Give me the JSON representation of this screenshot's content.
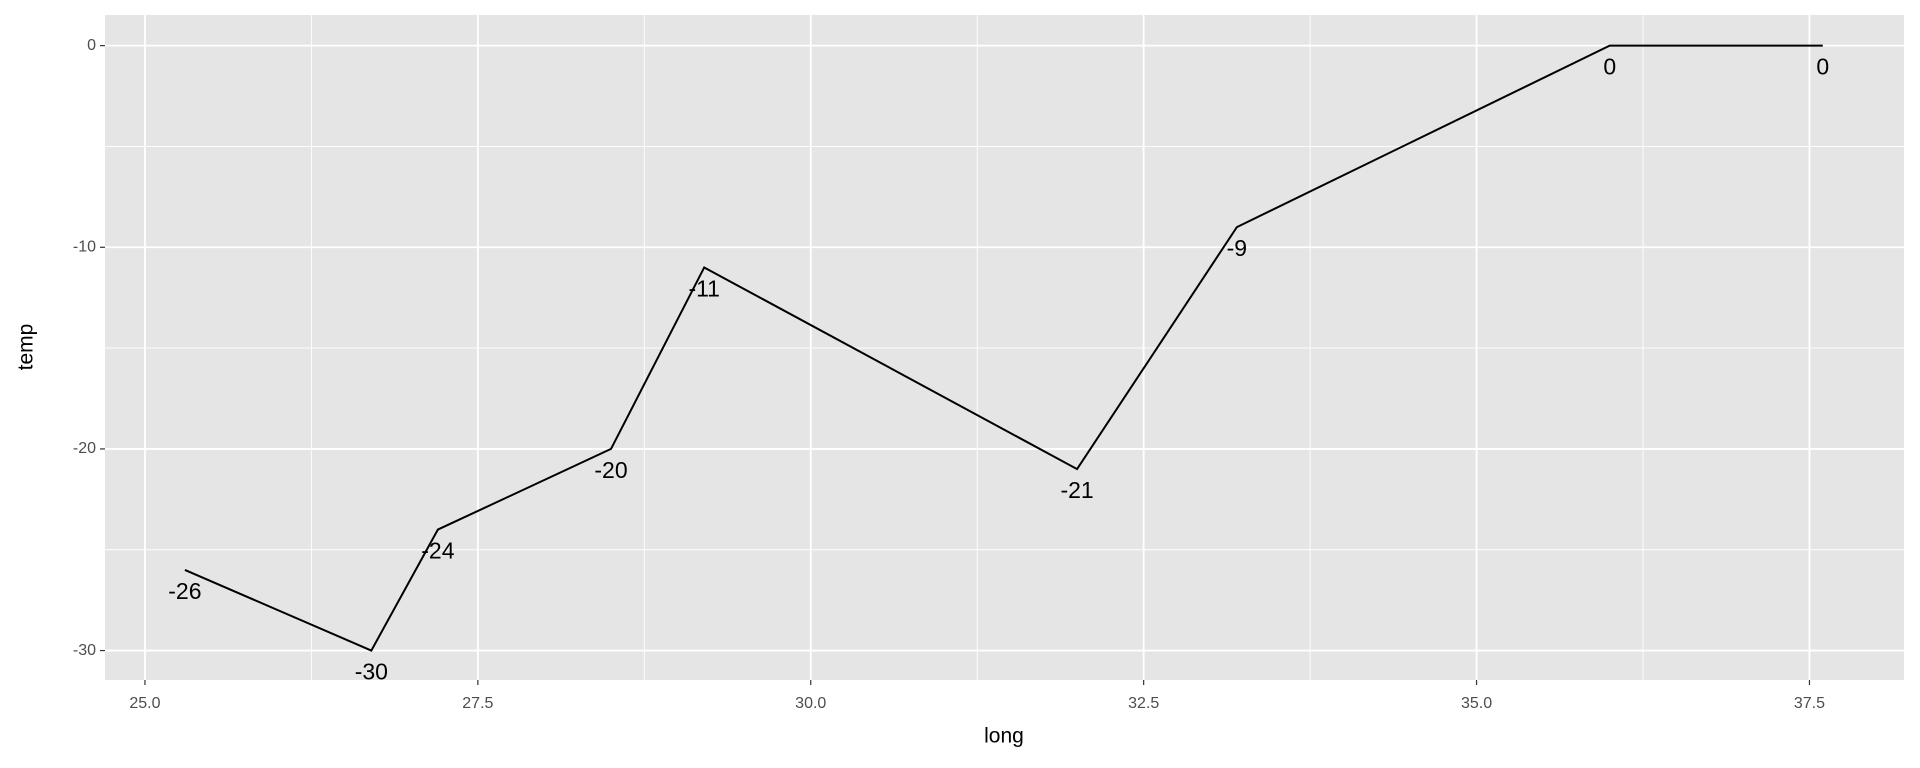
{
  "chart_data": {
    "type": "line",
    "x": [
      25.3,
      26.7,
      27.2,
      28.5,
      29.2,
      32.0,
      33.2,
      36.0,
      37.6
    ],
    "values": [
      -26,
      -30,
      -24,
      -20,
      -11,
      -21,
      -9,
      0,
      0
    ],
    "color": "#000000",
    "x_label": "long",
    "y_label": "temp",
    "xlim": [
      24.7,
      38.21
    ],
    "ylim": [
      -31.46,
      1.52
    ],
    "xticks": [
      {
        "value": 25,
        "label": "25.0"
      },
      27.5,
      {
        "value": 30,
        "label": "30.0"
      },
      32.5,
      {
        "value": 35,
        "label": "35.0"
      },
      37.5
    ],
    "yticks": [
      -30,
      -20,
      -10,
      0
    ],
    "grid": true
  }
}
